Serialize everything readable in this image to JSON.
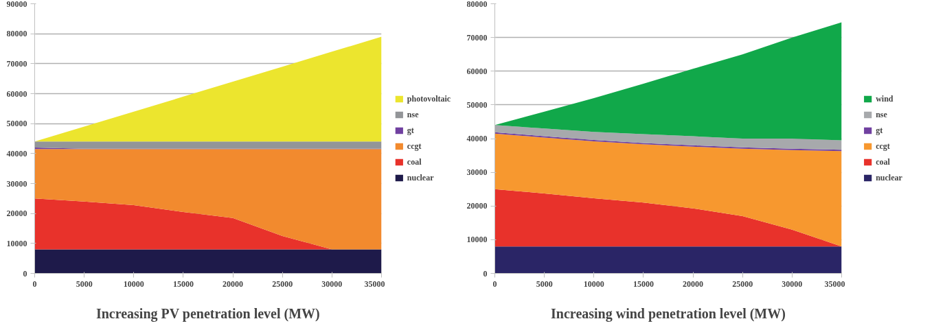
{
  "chart_data": [
    {
      "type": "area",
      "stacked": true,
      "xlabel": "Increasing PV penetration level (MW)",
      "x": [
        0,
        5000,
        10000,
        15000,
        20000,
        25000,
        30000,
        35000
      ],
      "xlim": [
        0,
        35000
      ],
      "xticks": [
        0,
        5000,
        10000,
        15000,
        20000,
        25000,
        30000,
        35000
      ],
      "ylim": [
        0,
        90000
      ],
      "yticks": [
        0,
        10000,
        20000,
        30000,
        40000,
        50000,
        60000,
        70000,
        80000,
        90000
      ],
      "grid": "y",
      "legend": "right",
      "series": [
        {
          "name": "nuclear",
          "color": "#1e1a4a",
          "values": [
            8000,
            8000,
            8000,
            8000,
            8000,
            8000,
            8000,
            8000
          ]
        },
        {
          "name": "coal",
          "color": "#e8322b",
          "values": [
            17000,
            16000,
            14800,
            12500,
            10500,
            4500,
            0,
            0
          ]
        },
        {
          "name": "ccgt",
          "color": "#f28a2e",
          "values": [
            16500,
            17500,
            18700,
            21000,
            23000,
            29000,
            33500,
            33500
          ]
        },
        {
          "name": "gt",
          "color": "#7040a0",
          "values": [
            500,
            100,
            100,
            100,
            100,
            100,
            100,
            100
          ]
        },
        {
          "name": "nse",
          "color": "#939598",
          "values": [
            2000,
            2400,
            2400,
            2400,
            2400,
            2400,
            2400,
            2400
          ]
        },
        {
          "name": "photovoltaic",
          "color": "#ece52e",
          "values": [
            0,
            5000,
            10000,
            15000,
            20000,
            25000,
            30000,
            35000
          ]
        }
      ]
    },
    {
      "type": "area",
      "stacked": true,
      "xlabel": "Increasing wind penetration level (MW)",
      "x": [
        0,
        5000,
        10000,
        15000,
        20000,
        25000,
        30000,
        35000
      ],
      "xlim": [
        0,
        35000
      ],
      "xticks": [
        0,
        5000,
        10000,
        15000,
        20000,
        25000,
        30000,
        35000
      ],
      "ylim": [
        0,
        80000
      ],
      "yticks": [
        0,
        10000,
        20000,
        30000,
        40000,
        50000,
        60000,
        70000,
        80000
      ],
      "grid": "y",
      "legend": "right",
      "series": [
        {
          "name": "nuclear",
          "color": "#2a2566",
          "values": [
            8000,
            8000,
            8000,
            8000,
            8000,
            8000,
            8000,
            8000
          ]
        },
        {
          "name": "coal",
          "color": "#e8322b",
          "values": [
            17000,
            15700,
            14300,
            13000,
            11300,
            9000,
            5000,
            0
          ]
        },
        {
          "name": "ccgt",
          "color": "#f7982f",
          "values": [
            16500,
            16600,
            16900,
            17300,
            18300,
            20000,
            23600,
            28300
          ]
        },
        {
          "name": "gt",
          "color": "#7040a0",
          "values": [
            400,
            400,
            400,
            400,
            400,
            400,
            400,
            400
          ]
        },
        {
          "name": "nse",
          "color": "#a7a9ac",
          "values": [
            2100,
            2300,
            2400,
            2600,
            2700,
            2600,
            3000,
            2800
          ]
        },
        {
          "name": "wind",
          "color": "#11a84a",
          "values": [
            0,
            5000,
            10000,
            15000,
            20000,
            25000,
            30000,
            35000
          ]
        }
      ]
    }
  ]
}
